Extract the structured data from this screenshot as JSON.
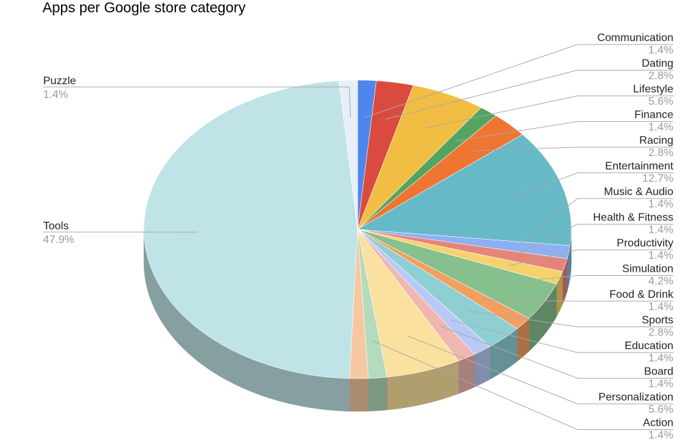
{
  "chart_data": {
    "type": "pie",
    "title": "Apps per Google store category",
    "slices": [
      {
        "label": "Communication",
        "value": 1.4,
        "display": "1.4%",
        "color": "#4f86ec"
      },
      {
        "label": "Dating",
        "value": 2.8,
        "display": "2.8%",
        "color": "#db4a3e"
      },
      {
        "label": "Lifestyle",
        "value": 5.6,
        "display": "5.6%",
        "color": "#f1bd42"
      },
      {
        "label": "Finance",
        "value": 1.4,
        "display": "1.4%",
        "color": "#53a45f"
      },
      {
        "label": "Racing",
        "value": 2.8,
        "display": "2.8%",
        "color": "#ee7532"
      },
      {
        "label": "Entertainment",
        "value": 12.7,
        "display": "12.7%",
        "color": "#66b9c6"
      },
      {
        "label": "Music & Audio",
        "value": 1.4,
        "display": "1.4%",
        "color": "#8eaff2"
      },
      {
        "label": "Health & Fitness",
        "value": 1.4,
        "display": "1.4%",
        "color": "#e6847a"
      },
      {
        "label": "Productivity",
        "value": 1.4,
        "display": "1.4%",
        "color": "#f7d26c"
      },
      {
        "label": "Simulation",
        "value": 4.2,
        "display": "4.2%",
        "color": "#86c08d"
      },
      {
        "label": "Food & Drink",
        "value": 1.4,
        "display": "1.4%",
        "color": "#f39f5e"
      },
      {
        "label": "Sports",
        "value": 2.8,
        "display": "2.8%",
        "color": "#8ecfd4"
      },
      {
        "label": "Education",
        "value": 1.4,
        "display": "1.4%",
        "color": "#b8c9f5"
      },
      {
        "label": "Board",
        "value": 1.4,
        "display": "1.4%",
        "color": "#efb7b0"
      },
      {
        "label": "Personalization",
        "value": 5.6,
        "display": "5.6%",
        "color": "#fbe19f"
      },
      {
        "label": "Action",
        "value": 1.4,
        "display": "1.4%",
        "color": "#b4dbbb"
      },
      {
        "label": "",
        "value": 1.4,
        "display": "",
        "color": "#f5c8a2"
      },
      {
        "label": "Tools",
        "value": 47.9,
        "display": "47.9%",
        "color": "#bfe3e6"
      },
      {
        "label": "Puzzle",
        "value": 1.4,
        "display": "1.4%",
        "color": "#e8eff8"
      }
    ],
    "legend": "none",
    "label_style": "callout-lines",
    "projection": "3d-tilted"
  }
}
